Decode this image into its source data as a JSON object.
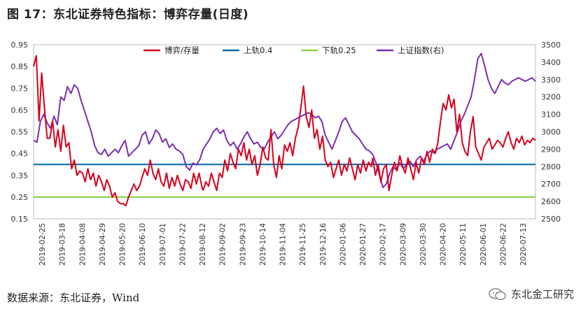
{
  "figure": {
    "title": "图 17：东北证券特色指标：博弈存量(日度)",
    "source": "数据来源：东北证券，Wind",
    "watermark": "东北金工研究"
  },
  "colors": {
    "ratio": "#d6001c",
    "upper": "#0d6ea8",
    "lower": "#8fd14f",
    "index": "#7a2fb0"
  },
  "chart_data": {
    "type": "line",
    "title": "",
    "left_axis": {
      "ylim": [
        0.15,
        0.95
      ],
      "ticks": [
        0.95,
        0.85,
        0.75,
        0.65,
        0.55,
        0.45,
        0.35,
        0.25,
        0.15
      ]
    },
    "right_axis": {
      "ylim": [
        2500,
        3500
      ],
      "ticks": [
        3500,
        3400,
        3300,
        3200,
        3100,
        3000,
        2900,
        2800,
        2700,
        2600,
        2500
      ]
    },
    "x_tick_labels": [
      "2019-02-25",
      "2019-03-18",
      "2019-04-08",
      "2019-04-29",
      "2019-05-20",
      "2019-06-10",
      "2019-07-01",
      "2019-07-22",
      "2019-08-12",
      "2019-09-02",
      "2019-09-23",
      "2019-10-14",
      "2019-11-04",
      "2019-11-25",
      "2019-12-16",
      "2020-01-06",
      "2020-01-27",
      "2020-02-17",
      "2020-03-09",
      "2020-03-30",
      "2020-04-20",
      "2020-05-11",
      "2020-06-01",
      "2020-06-22",
      "2020-07-13"
    ],
    "legend_position": "top",
    "series": [
      {
        "key": "ratio",
        "name": "博弈/存量",
        "axis": "left",
        "x": [
          0,
          0.4,
          0.8,
          1.2,
          1.6,
          2,
          2.4,
          2.8,
          3.2,
          3.6,
          4,
          4.4,
          4.8,
          5.2,
          5.6,
          6,
          6.4,
          6.8,
          7.2,
          7.6,
          8,
          8.4,
          8.8,
          9.2,
          9.6,
          10,
          10.4,
          10.8,
          11.2,
          11.6,
          12,
          12.4,
          12.8,
          13.2,
          13.6,
          14,
          14.4,
          14.8,
          15.2,
          15.6,
          16,
          16.4,
          16.8,
          17.2,
          17.6,
          18,
          18.4,
          18.8,
          19.2,
          19.6,
          20,
          20.4,
          20.8,
          21.2,
          21.6,
          22,
          22.4,
          22.8,
          23.2,
          23.6,
          24,
          24.4,
          24.8,
          25
        ],
        "values": [
          0.85,
          0.9,
          0.6,
          0.82,
          0.66,
          0.52,
          0.52,
          0.6,
          0.48,
          0.56,
          0.46,
          0.58,
          0.48,
          0.5,
          0.38,
          0.42,
          0.35,
          0.37,
          0.36,
          0.32,
          0.38,
          0.33,
          0.36,
          0.3,
          0.35,
          0.32,
          0.28,
          0.33,
          0.3,
          0.25,
          0.27,
          0.23,
          0.22,
          0.22,
          0.21,
          0.25,
          0.28,
          0.31,
          0.28,
          0.3,
          0.34,
          0.38,
          0.35,
          0.42,
          0.36,
          0.33,
          0.38,
          0.32,
          0.3,
          0.36,
          0.29,
          0.34,
          0.3,
          0.35,
          0.31,
          0.28,
          0.33,
          0.32,
          0.29,
          0.36,
          0.31,
          0.36,
          0.3,
          0.28
        ],
        "note_values_continue": "see extended list below"
      },
      {
        "key": "ratio_ext",
        "name": "",
        "axis": "left",
        "x": [
          25,
          25.4,
          25.8,
          26.2,
          26.6,
          27,
          27.4,
          27.8,
          28.2,
          28.6,
          29,
          29.4,
          29.8,
          30.2,
          30.6,
          31,
          31.4,
          31.8,
          32.2,
          32.6,
          33,
          33.4,
          33.8,
          34.2,
          34.6,
          35,
          35.4,
          35.8,
          36.2,
          36.6,
          37,
          37.4,
          37.8,
          38.2,
          38.6,
          39,
          39.4,
          39.8,
          40.2,
          40.6,
          41,
          41.4,
          41.8,
          42.2,
          42.6,
          43,
          43.4,
          43.8,
          44.2,
          44.6,
          45,
          45.4,
          45.8,
          46.2,
          46.6,
          47,
          47.4,
          47.8,
          48.2,
          48.6,
          49,
          49.4,
          49.8,
          50
        ],
        "values": [
          0.28,
          0.32,
          0.3,
          0.36,
          0.32,
          0.28,
          0.36,
          0.34,
          0.42,
          0.37,
          0.45,
          0.41,
          0.38,
          0.47,
          0.44,
          0.5,
          0.42,
          0.47,
          0.4,
          0.44,
          0.35,
          0.4,
          0.48,
          0.43,
          0.42,
          0.56,
          0.4,
          0.34,
          0.44,
          0.38,
          0.49,
          0.46,
          0.5,
          0.44,
          0.52,
          0.57,
          0.66,
          0.76,
          0.62,
          0.57,
          0.65,
          0.52,
          0.56,
          0.47,
          0.53,
          0.42,
          0.39,
          0.41,
          0.34,
          0.38,
          0.42,
          0.35,
          0.4,
          0.37,
          0.43,
          0.38,
          0.33,
          0.4,
          0.36,
          0.42,
          0.37,
          0.41,
          0.39,
          0.43
        ]
      },
      {
        "key": "ratio_ext2",
        "name": "",
        "axis": "left",
        "x": [
          50,
          50.4,
          50.8,
          51.2,
          51.6,
          52,
          52.4,
          52.8,
          53.2,
          53.6,
          54,
          54.4,
          54.8,
          55.2,
          55.6,
          56,
          56.4,
          56.8,
          57.2,
          57.6,
          58,
          58.4,
          58.8,
          59.2,
          59.6,
          60,
          60.4,
          60.8,
          61.2,
          61.6,
          62,
          62.4,
          62.8,
          63.2,
          63.6,
          64,
          64.4,
          64.8,
          65.2,
          65.6,
          66,
          66.4,
          66.8,
          67.2,
          67.6,
          68,
          68.4,
          68.8,
          69.2,
          69.6,
          70,
          70.4,
          70.8,
          71.2,
          71.6,
          72,
          72.4,
          72.8,
          73.2,
          73.6,
          74
        ],
        "values": [
          0.43,
          0.35,
          0.4,
          0.32,
          0.38,
          0.4,
          0.28,
          0.35,
          0.41,
          0.37,
          0.44,
          0.39,
          0.36,
          0.43,
          0.38,
          0.33,
          0.41,
          0.36,
          0.43,
          0.4,
          0.46,
          0.41,
          0.47,
          0.45,
          0.5,
          0.6,
          0.68,
          0.65,
          0.72,
          0.66,
          0.7,
          0.55,
          0.63,
          0.5,
          0.46,
          0.44,
          0.55,
          0.62,
          0.48,
          0.45,
          0.42,
          0.48,
          0.5,
          0.52,
          0.47,
          0.49,
          0.51,
          0.5,
          0.48,
          0.52,
          0.55,
          0.5,
          0.47,
          0.52,
          0.5,
          0.53,
          0.49,
          0.51,
          0.5,
          0.52,
          0.51
        ]
      },
      {
        "key": "upper",
        "name": "上轨0.4",
        "axis": "left",
        "x": [
          0,
          74
        ],
        "values": [
          0.4,
          0.4
        ]
      },
      {
        "key": "lower",
        "name": "下轨0.25",
        "axis": "left",
        "x": [
          0,
          74
        ],
        "values": [
          0.25,
          0.25
        ]
      },
      {
        "key": "index",
        "name": "上证指数(右)",
        "axis": "right",
        "x": [
          0,
          0.5,
          1,
          1.5,
          2,
          2.5,
          3,
          3.5,
          4,
          4.5,
          5,
          5.5,
          6,
          6.5,
          7,
          7.5,
          8,
          8.5,
          9,
          9.5,
          10,
          10.5,
          11,
          11.5,
          12,
          12.5,
          13,
          13.5,
          14,
          14.5,
          15,
          15.5,
          16,
          16.5,
          17,
          17.5,
          18,
          18.5,
          19,
          19.5,
          20,
          20.5,
          21,
          21.5,
          22,
          22.5,
          23,
          23.5,
          24,
          24.5,
          25
        ],
        "values": [
          2950,
          2940,
          3060,
          3100,
          3050,
          3020,
          3090,
          3040,
          3200,
          3180,
          3260,
          3220,
          3270,
          3250,
          3180,
          3120,
          3060,
          3000,
          2920,
          2880,
          2870,
          2900,
          2860,
          2880,
          2900,
          2880,
          2920,
          2950,
          2860,
          2880,
          2900,
          2920,
          2980,
          3000,
          2930,
          2960,
          3010,
          2990,
          2940,
          2960,
          2910,
          2930,
          2900,
          2890,
          2870,
          2800,
          2780,
          2820,
          2810,
          2840,
          2900
        ]
      },
      {
        "key": "index_ext",
        "name": "",
        "axis": "right",
        "x": [
          25,
          25.5,
          26,
          26.5,
          27,
          27.5,
          28,
          28.5,
          29,
          29.5,
          30,
          30.5,
          31,
          31.5,
          32,
          32.5,
          33,
          33.5,
          34,
          34.5,
          35,
          35.5,
          36,
          36.5,
          37,
          37.5,
          38,
          38.5,
          39,
          39.5,
          40,
          40.5,
          41,
          41.5,
          42,
          42.5,
          43,
          43.5,
          44,
          44.5,
          45,
          45.5,
          46,
          46.5,
          47,
          47.5,
          48,
          48.5,
          49,
          49.5,
          50
        ],
        "values": [
          2900,
          2930,
          2960,
          3000,
          3020,
          2990,
          3010,
          2950,
          2920,
          2940,
          2900,
          2930,
          2970,
          3000,
          2960,
          2930,
          2940,
          2910,
          2900,
          2940,
          2970,
          3000,
          2960,
          2980,
          3010,
          3040,
          3060,
          3070,
          3080,
          3090,
          3100,
          3110,
          3100,
          3080,
          3090,
          3060,
          2980,
          2940,
          2900,
          2950,
          3000,
          3060,
          3080,
          3040,
          3000,
          2980,
          2960,
          2930,
          2900,
          2890,
          2870
        ]
      },
      {
        "key": "index_ext2",
        "name": "",
        "axis": "right",
        "x": [
          50,
          50.5,
          51,
          51.5,
          52,
          52.5,
          53,
          53.5,
          54,
          54.5,
          55,
          55.5,
          56,
          56.5,
          57,
          57.5,
          58,
          58.5,
          59,
          59.5,
          60,
          60.5,
          61,
          61.5,
          62,
          62.5,
          63,
          63.5,
          64,
          64.5,
          65,
          65.5,
          66,
          66.5,
          67,
          67.5,
          68,
          68.5,
          69,
          69.5,
          70,
          70.5,
          71,
          71.5,
          72,
          72.5,
          73,
          73.5,
          74
        ],
        "values": [
          2870,
          2820,
          2750,
          2680,
          2700,
          2760,
          2800,
          2780,
          2820,
          2790,
          2810,
          2830,
          2800,
          2840,
          2860,
          2830,
          2870,
          2890,
          2880,
          2900,
          2910,
          2920,
          2930,
          2900,
          2950,
          3000,
          3060,
          3100,
          3150,
          3200,
          3300,
          3420,
          3450,
          3380,
          3300,
          3250,
          3220,
          3260,
          3300,
          3280,
          3270,
          3290,
          3300,
          3310,
          3300,
          3290,
          3300,
          3310,
          3290
        ]
      }
    ]
  }
}
